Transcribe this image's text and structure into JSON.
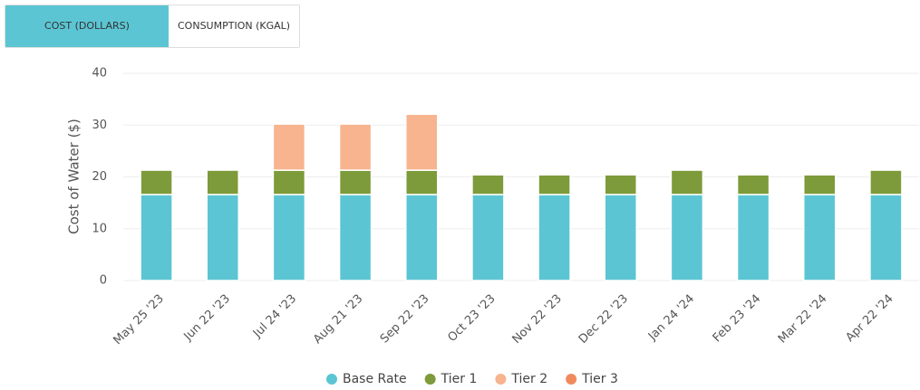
{
  "tabs": [
    "COST (DOLLARS)",
    "CONSUMPTION (KGAL)"
  ],
  "chart_data": {
    "type": "stacked-bar",
    "y_label": "Cost of Water ($)",
    "categories": [
      "May 25 '23",
      "Jun 22 '23",
      "Jul 24 '23",
      "Aug 21 '23",
      "Sep 22 '23",
      "Oct 23 '23",
      "Nov 22 '23",
      "Dec 22 '23",
      "Jan 24 '24",
      "Feb 23 '24",
      "Mar 22 '24",
      "Apr 22 '24"
    ],
    "series": [
      {
        "name": "Base Rate",
        "color": "#5bc5d3",
        "values": [
          16.6,
          16.6,
          16.6,
          16.6,
          16.6,
          16.6,
          16.6,
          16.6,
          16.6,
          16.6,
          16.6,
          16.6
        ]
      },
      {
        "name": "Tier 1",
        "color": "#7d9b3a",
        "values": [
          4.7,
          4.7,
          4.7,
          4.7,
          4.7,
          3.8,
          3.8,
          3.8,
          4.7,
          3.8,
          3.8,
          4.7
        ]
      },
      {
        "name": "Tier 2",
        "color": "#f7b48e",
        "values": [
          0,
          0,
          8.9,
          8.9,
          10.8,
          0,
          0,
          0,
          0,
          0,
          0,
          0
        ]
      },
      {
        "name": "Tier 3",
        "color": "#f08a5d",
        "values": [
          0,
          0,
          0,
          0,
          0,
          0,
          0,
          0,
          0,
          0,
          0,
          0
        ]
      }
    ],
    "ylim": [
      0,
      40
    ],
    "yticks": [
      0,
      10,
      20,
      30,
      40
    ],
    "grid": true,
    "legend": "bottom"
  }
}
